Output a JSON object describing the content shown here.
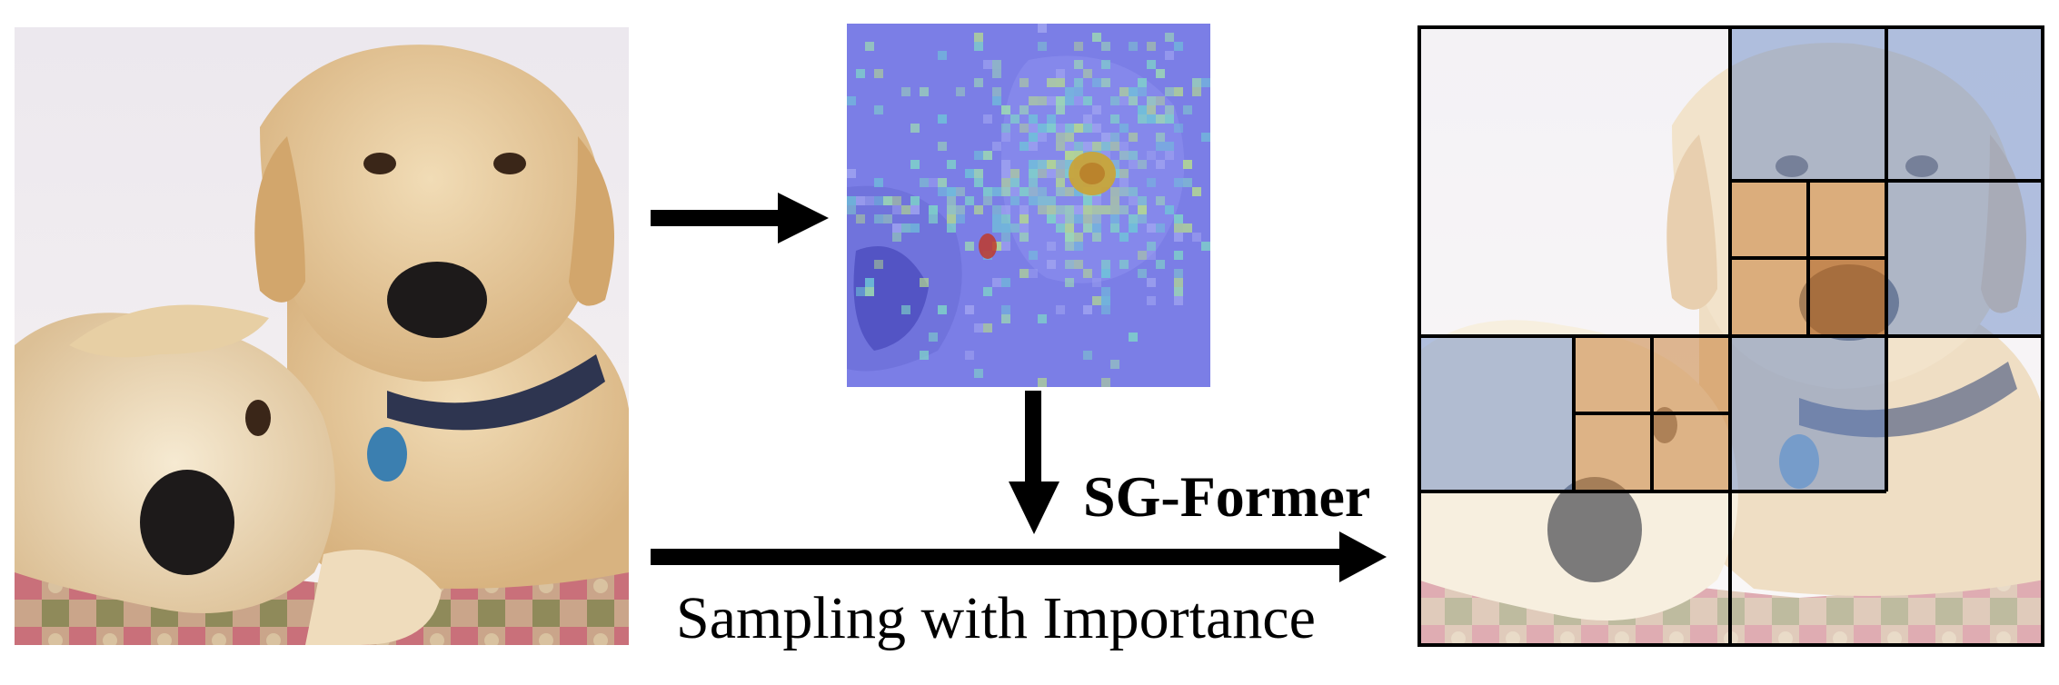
{
  "labels": {
    "method": "SG-Former",
    "sampling": "Sampling with Importance"
  },
  "images": {
    "input": "photo of two yellow labrador retrievers lying on a quilted cushion",
    "attention_map": "importance / attention heatmap of the input image",
    "output": "input image overlaid with adaptive grid regions"
  },
  "colors": {
    "arrow": "#000000",
    "heat_base": "#7b7ee6",
    "high_importance": "#c8823c",
    "low_importance": "#5a7fc0",
    "grid_line": "#000000"
  }
}
